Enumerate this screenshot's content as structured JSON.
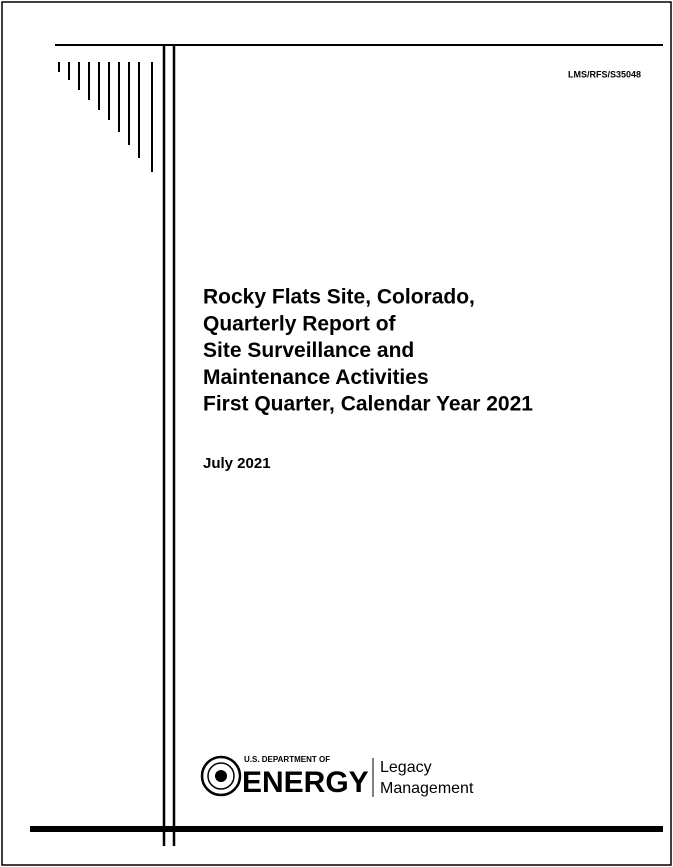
{
  "document": {
    "doc_number": "LMS/RFS/S35048",
    "title_lines": [
      "Rocky Flats Site, Colorado,",
      "Quarterly Report of",
      "Site Surveillance and",
      "Maintenance Activities",
      "First Quarter, Calendar Year 2021"
    ],
    "date": "July 2021",
    "logo": {
      "department": "U.S. DEPARTMENT OF",
      "agency": "ENERGY",
      "office_lines": [
        "Legacy",
        "Management"
      ]
    }
  }
}
